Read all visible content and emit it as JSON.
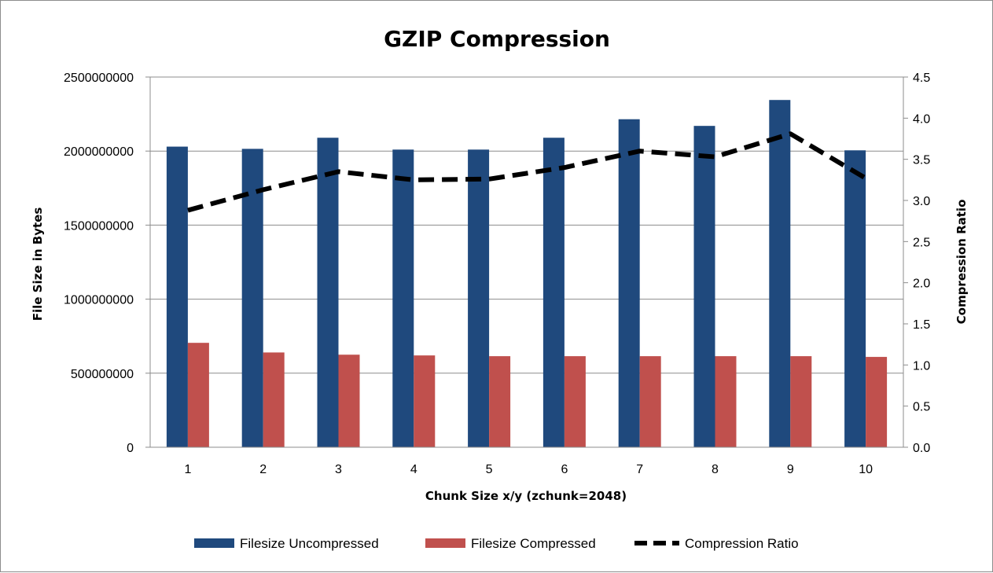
{
  "chart_data": {
    "type": "bar",
    "title": "GZIP Compression",
    "xlabel": "Chunk Size x/y (zchunk=2048)",
    "ylabel": "File Size in Bytes",
    "y2label": "Compression Ratio",
    "categories": [
      "1",
      "2",
      "3",
      "4",
      "5",
      "6",
      "7",
      "8",
      "9",
      "10"
    ],
    "ylim": [
      0,
      2500000000
    ],
    "y2lim": [
      0,
      4.5
    ],
    "yticks": [
      "0",
      "500000000",
      "1000000000",
      "1500000000",
      "2000000000",
      "2500000000"
    ],
    "y2ticks": [
      "0.0",
      "0.5",
      "1.0",
      "1.5",
      "2.0",
      "2.5",
      "3.0",
      "3.5",
      "4.0",
      "4.5"
    ],
    "grid": true,
    "legend_position": "bottom",
    "series": [
      {
        "name": "Filesize Uncompressed",
        "kind": "bar",
        "axis": "left",
        "color": "#1f497d",
        "values": [
          2030000000,
          2015000000,
          2090000000,
          2010000000,
          2010000000,
          2090000000,
          2215000000,
          2170000000,
          2345000000,
          2005000000
        ]
      },
      {
        "name": "Filesize Compressed",
        "kind": "bar",
        "axis": "left",
        "color": "#c0504d",
        "values": [
          705000000,
          640000000,
          625000000,
          620000000,
          615000000,
          615000000,
          615000000,
          615000000,
          615000000,
          610000000
        ]
      },
      {
        "name": "Compression Ratio",
        "kind": "line",
        "style": "dashed",
        "axis": "right",
        "color": "#000000",
        "values": [
          2.88,
          3.13,
          3.35,
          3.25,
          3.26,
          3.4,
          3.6,
          3.53,
          3.81,
          3.27
        ]
      }
    ]
  }
}
